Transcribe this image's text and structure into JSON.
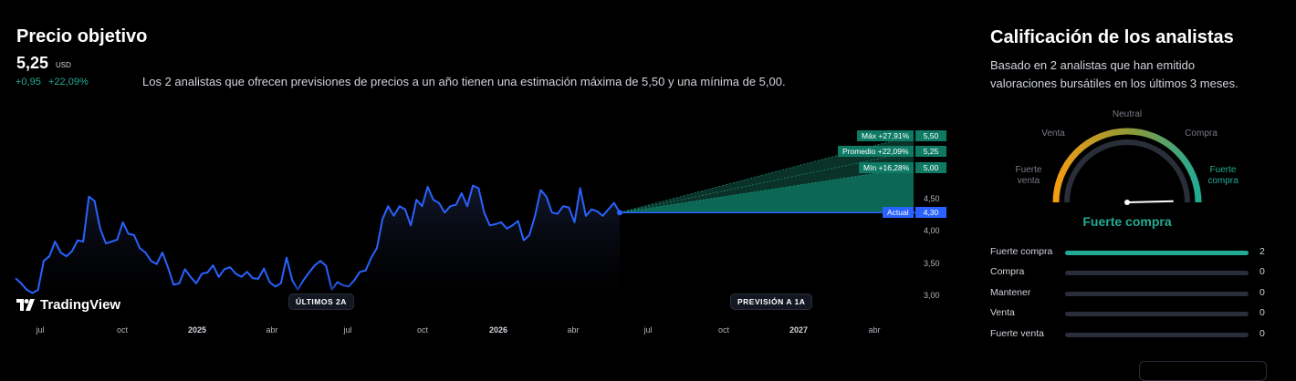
{
  "target": {
    "title": "Precio objetivo",
    "price": "5,25",
    "unit": "USD",
    "change_abs": "+0,95",
    "change_pct": "+22,09%",
    "summary": "Los 2 analistas que ofrecen previsiones de precios a un año tienen una estimación máxima de 5,50 y una mínima de 5,00."
  },
  "chart_data": {
    "type": "line",
    "series": [
      {
        "values": [
          3.28,
          3.2,
          3.1,
          3.05,
          3.1,
          3.55,
          3.62,
          3.85,
          3.68,
          3.62,
          3.7,
          3.87,
          3.85,
          4.55,
          4.48,
          4.05,
          3.82,
          3.85,
          3.88,
          4.15,
          3.97,
          3.95,
          3.75,
          3.68,
          3.55,
          3.5,
          3.68,
          3.45,
          3.18,
          3.2,
          3.42,
          3.3,
          3.2,
          3.35,
          3.37,
          3.48,
          3.3,
          3.42,
          3.45,
          3.35,
          3.3,
          3.38,
          3.28,
          3.27,
          3.43,
          3.22,
          3.15,
          3.2,
          3.6,
          3.25,
          3.1,
          3.25,
          3.37,
          3.48,
          3.55,
          3.47,
          3.1,
          3.22,
          3.17,
          3.15,
          3.25,
          3.38,
          3.4,
          3.6,
          3.75,
          4.2,
          4.4,
          4.25,
          4.4,
          4.35,
          4.1,
          4.5,
          4.4,
          4.7,
          4.5,
          4.45,
          4.3,
          4.4,
          4.42,
          4.6,
          4.4,
          4.72,
          4.68,
          4.3,
          4.1,
          4.12,
          4.15,
          4.05,
          4.1,
          4.17,
          3.87,
          3.95,
          4.25,
          4.65,
          4.55,
          4.3,
          4.28,
          4.4,
          4.38,
          4.15,
          4.68,
          4.25,
          4.35,
          4.32,
          4.25,
          4.35,
          4.45,
          4.3
        ]
      }
    ],
    "forecast": {
      "current": 4.3,
      "max": 5.5,
      "avg": 5.25,
      "min": 5.0
    },
    "y_ticks": [
      "5,50",
      "5,25",
      "5,00",
      "4,50",
      "4,30",
      "4,00",
      "3,50",
      "3,00"
    ],
    "ylim": [
      2.9,
      5.6
    ],
    "x_ticks": [
      {
        "t": "jul",
        "year": false
      },
      {
        "t": "oct",
        "year": false
      },
      {
        "t": "2025",
        "year": true
      },
      {
        "t": "abr",
        "year": false
      },
      {
        "t": "jul",
        "year": false
      },
      {
        "t": "oct",
        "year": false
      },
      {
        "t": "2026",
        "year": true
      },
      {
        "t": "abr",
        "year": false
      },
      {
        "t": "jul",
        "year": false
      },
      {
        "t": "oct",
        "year": false
      },
      {
        "t": "2027",
        "year": true
      },
      {
        "t": "abr",
        "year": false
      }
    ],
    "tags": {
      "max_label": "Máx +27,91%",
      "max_val": "5,50",
      "avg_label": "Promedio +22,09%",
      "avg_val": "5,25",
      "min_label": "Mín +16,28%",
      "min_val": "5,00",
      "actual_label": "Actual",
      "actual_val": "4,30"
    },
    "colors": {
      "line": "#2962ff",
      "forecast": "#0e7a64"
    }
  },
  "periods": {
    "past": "ÚLTIMOS 2A",
    "future": "PREVISIÓN A 1A"
  },
  "brand": "TradingView",
  "rating": {
    "title": "Calificación de los analistas",
    "description": "Basado en 2 analistas que han emitido valoraciones bursátiles en los últimos 3 meses.",
    "gauge": {
      "neutral": "Neutral",
      "sell": "Venta",
      "buy": "Compra",
      "strong_sell": "Fuerte venta",
      "strong_buy": "Fuerte compra",
      "verdict": "Fuerte compra",
      "needle_level": 0.93
    },
    "rows": [
      {
        "label": "Fuerte compra",
        "count": 2,
        "fraction": 1.0
      },
      {
        "label": "Compra",
        "count": 0,
        "fraction": 0
      },
      {
        "label": "Mantener",
        "count": 0,
        "fraction": 0
      },
      {
        "label": "Venta",
        "count": 0,
        "fraction": 0
      },
      {
        "label": "Fuerte venta",
        "count": 0,
        "fraction": 0
      }
    ]
  }
}
